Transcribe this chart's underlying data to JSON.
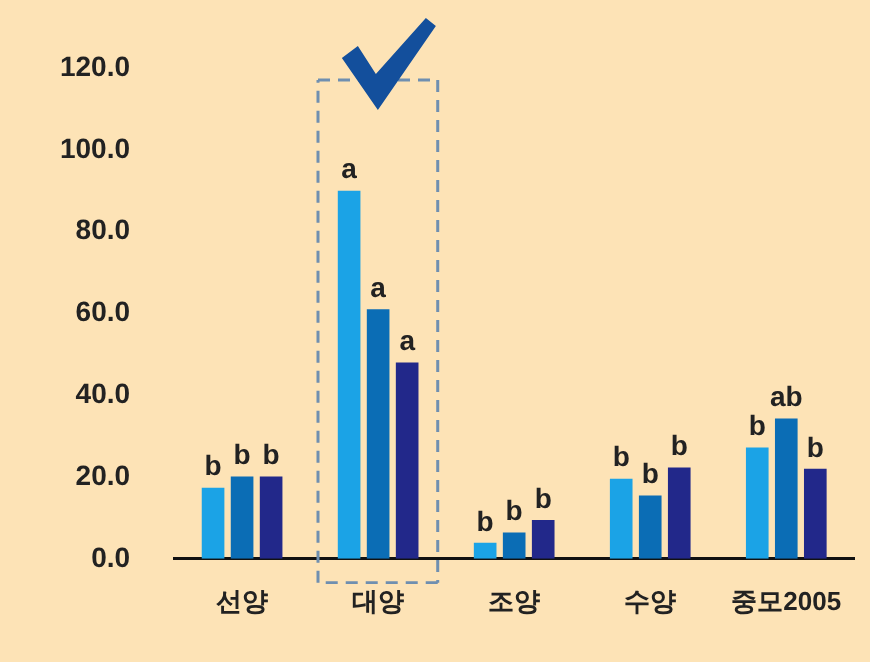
{
  "chart_data": {
    "type": "bar",
    "categories": [
      "선양",
      "대양",
      "조양",
      "수양",
      "중모2005"
    ],
    "series": [
      {
        "color": "#1ba3e6",
        "values": [
          17.4,
          90,
          3.9,
          19.6,
          27.2
        ],
        "value_labels": [
          "b",
          "a",
          "b",
          "b",
          "b"
        ]
      },
      {
        "color": "#0b6db5",
        "values": [
          20.1,
          61,
          6.4,
          15.5,
          34.3
        ],
        "value_labels": [
          "b",
          "a",
          "b",
          "b",
          "ab"
        ]
      },
      {
        "color": "#22288a",
        "values": [
          20.1,
          48,
          9.5,
          22.3,
          22.0
        ],
        "value_labels": [
          "b",
          "a",
          "b",
          "b",
          "b"
        ]
      }
    ],
    "ylim": [
      0,
      120
    ],
    "yticks": [
      {
        "value": 0,
        "label": "0.0"
      },
      {
        "value": 20,
        "label": "20.0"
      },
      {
        "value": 40,
        "label": "40.0"
      },
      {
        "value": 60,
        "label": "60.0"
      },
      {
        "value": 80,
        "label": "80.0"
      },
      {
        "value": 100,
        "label": "100.0"
      },
      {
        "value": 120,
        "label": "120.0"
      }
    ],
    "grid": false,
    "legend": false
  }
}
